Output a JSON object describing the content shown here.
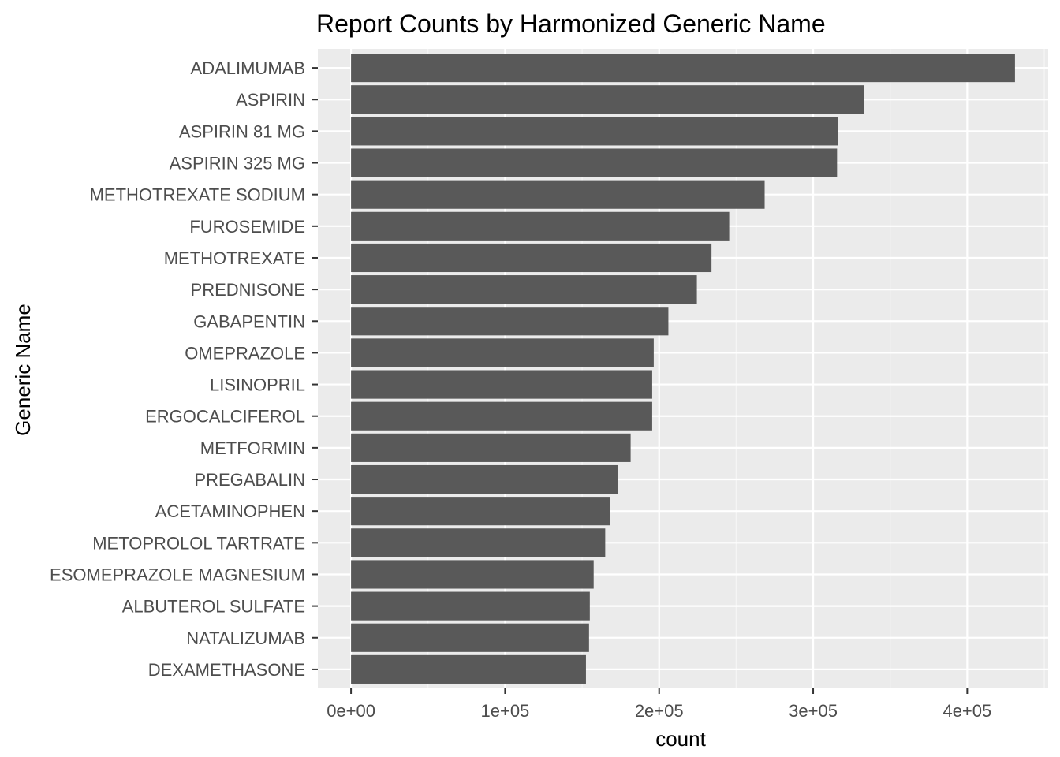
{
  "colors": {
    "panel_background": "#EBEBEB",
    "grid_major": "#FFFFFF",
    "grid_minor": "#F5F5F5",
    "bar_fill": "#595959",
    "tick_text": "#4D4D4D",
    "title_text": "#000000",
    "tick_mark": "#333333"
  },
  "chart_data": {
    "type": "bar",
    "orientation": "horizontal",
    "title": "Report Counts by Harmonized Generic Name",
    "xlabel": "count",
    "ylabel": "Generic Name",
    "categories": [
      "ADALIMUMAB",
      "ASPIRIN",
      "ASPIRIN 81 MG",
      "ASPIRIN 325 MG",
      "METHOTREXATE SODIUM",
      "FUROSEMIDE",
      "METHOTREXATE",
      "PREDNISONE",
      "GABAPENTIN",
      "OMEPRAZOLE",
      "LISINOPRIL",
      "ERGOCALCIFEROL",
      "METFORMIN",
      "PREGABALIN",
      "ACETAMINOPHEN",
      "METOPROLOL TARTRATE",
      "ESOMEPRAZOLE MAGNESIUM",
      "ALBUTEROL SULFATE",
      "NATALIZUMAB",
      "DEXAMETHASONE"
    ],
    "values": [
      431000,
      333000,
      316000,
      315500,
      268500,
      245500,
      234000,
      224500,
      206000,
      196500,
      195500,
      195500,
      181500,
      173000,
      168000,
      165000,
      157500,
      155000,
      154500,
      152500
    ],
    "xticks": [
      0,
      100000,
      200000,
      300000,
      400000
    ],
    "xtick_labels": [
      "0e+00",
      "1e+05",
      "2e+05",
      "3e+05",
      "4e+05"
    ],
    "xlim": [
      -21550,
      452550
    ],
    "grid": true,
    "legend": "none"
  }
}
